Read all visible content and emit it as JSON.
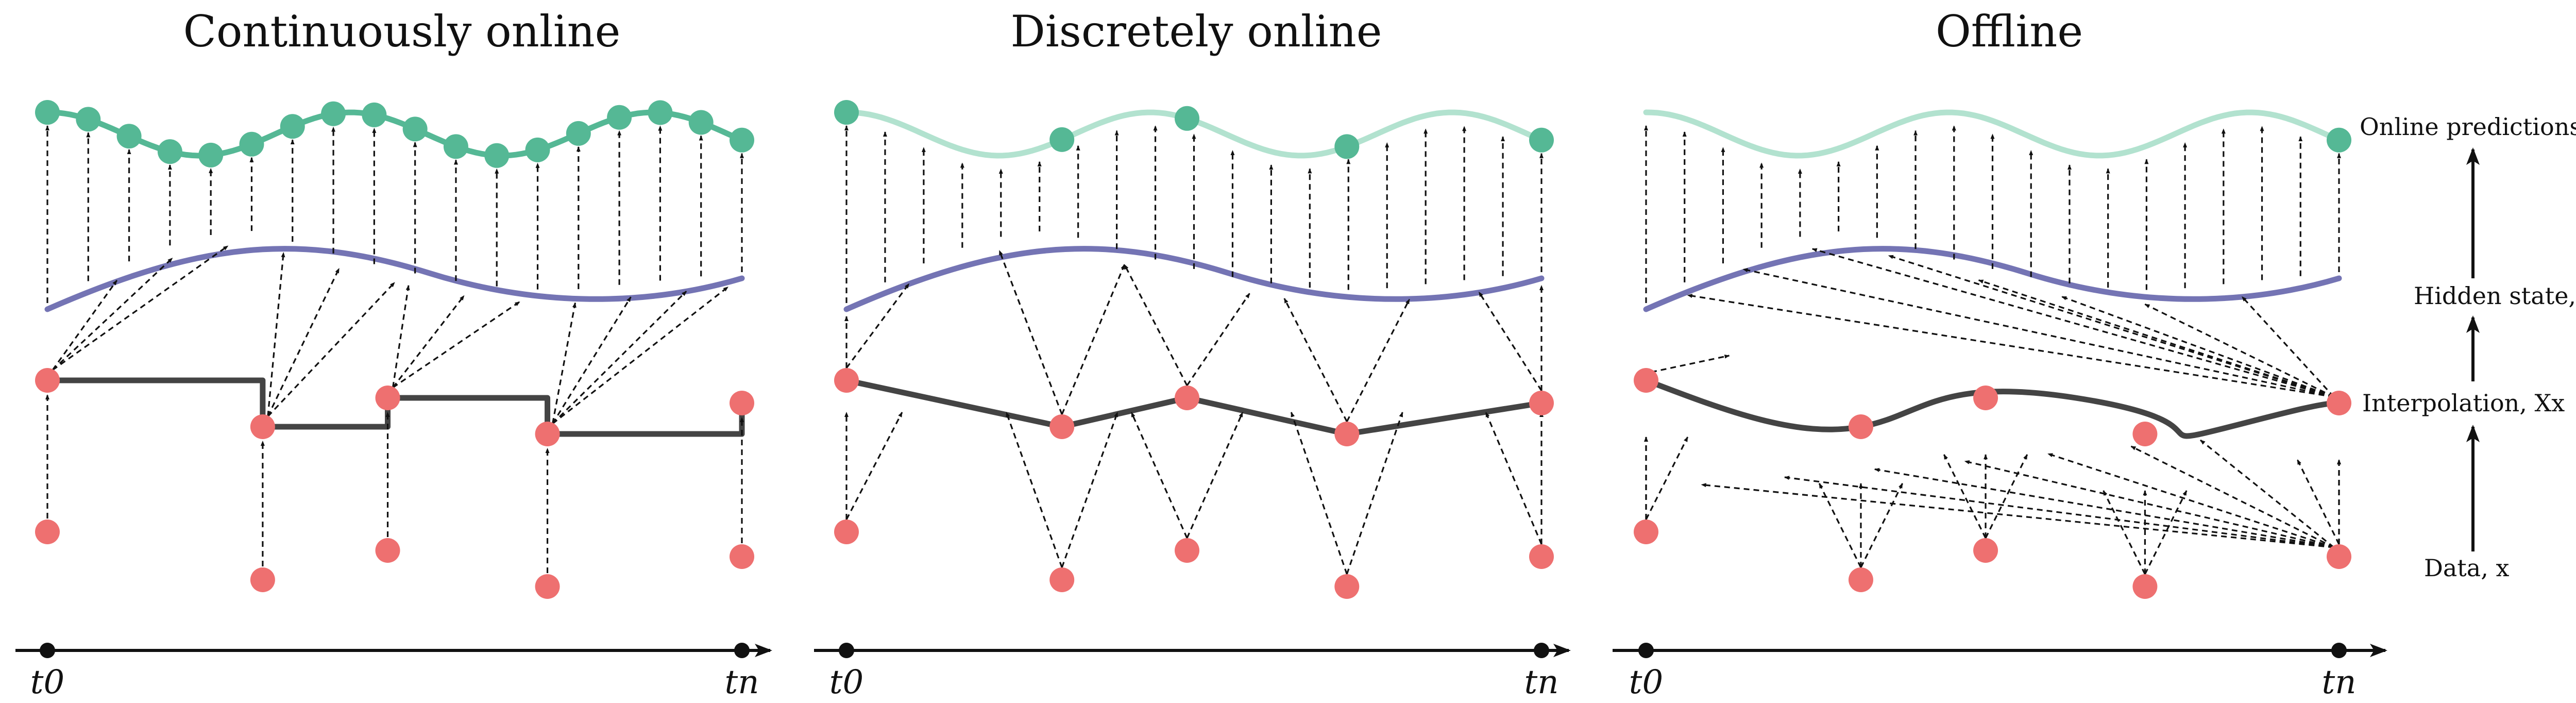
{
  "panels": [
    {
      "title": "Continuously online"
    },
    {
      "title": "Discretely online"
    },
    {
      "title": "Offline"
    }
  ],
  "levels": {
    "online_predictions": "Online predictions",
    "hidden_state": "Hidden state, z(t)",
    "interpolation": "Interpolation, Xx",
    "data": "Data, x"
  },
  "axis": {
    "start_label": "t0",
    "end_label": "tn"
  },
  "colors": {
    "data_points": "#ee7070",
    "hidden_state": "#7474b4",
    "predictions": "#55b895",
    "predictions_faded": "#b2e2cf",
    "interpolation": "#444444",
    "arrows": "#111111"
  }
}
